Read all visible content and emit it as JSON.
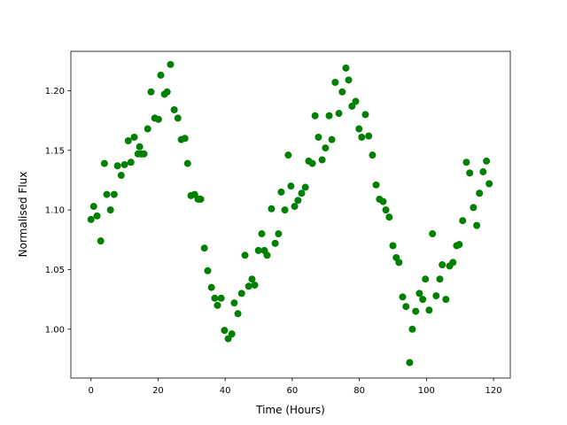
{
  "chart_data": {
    "type": "scatter",
    "xlabel": "Time (Hours)",
    "ylabel": "Normalised Flux",
    "color": "#008000",
    "xlim": [
      -6,
      125
    ],
    "ylim": [
      0.959,
      1.233
    ],
    "xticks": [
      0,
      20,
      40,
      60,
      80,
      100,
      120
    ],
    "yticks": [
      {
        "value": 1.0,
        "label": "1.00"
      },
      {
        "value": 1.05,
        "label": "1.05"
      },
      {
        "value": 1.1,
        "label": "1.10"
      },
      {
        "value": 1.15,
        "label": "1.15"
      },
      {
        "value": 1.2,
        "label": "1.20"
      }
    ],
    "x": [
      0.0,
      0.8,
      1.8,
      2.9,
      4.0,
      4.7,
      5.8,
      6.9,
      7.9,
      9.0,
      10.0,
      11.1,
      11.9,
      12.9,
      14.0,
      14.5,
      15.0,
      15.8,
      16.9,
      17.9,
      19.0,
      20.1,
      20.8,
      21.9,
      22.7,
      23.7,
      24.8,
      25.9,
      26.9,
      28.0,
      28.8,
      29.8,
      30.9,
      31.9,
      32.7,
      33.8,
      34.8,
      35.9,
      36.9,
      37.7,
      38.8,
      39.8,
      40.9,
      42.0,
      42.7,
      43.8,
      44.9,
      45.9,
      47.0,
      48.0,
      48.8,
      49.9,
      50.9,
      51.7,
      52.5,
      53.8,
      54.9,
      55.9,
      56.7,
      57.8,
      58.8,
      59.6,
      60.7,
      61.7,
      62.8,
      63.9,
      64.9,
      66.0,
      66.8,
      67.8,
      68.9,
      69.9,
      71.0,
      71.8,
      72.8,
      73.9,
      74.9,
      76.0,
      76.8,
      77.8,
      78.9,
      79.9,
      80.7,
      81.8,
      82.8,
      83.9,
      85.0,
      86.0,
      87.1,
      87.9,
      88.9,
      90.0,
      91.0,
      91.8,
      92.9,
      93.9,
      95.0,
      95.8,
      96.8,
      97.9,
      98.9,
      99.7,
      100.8,
      101.8,
      102.9,
      104.0,
      104.7,
      105.8,
      106.9,
      107.9,
      109.0,
      109.8,
      110.8,
      111.9,
      112.9,
      114.0,
      115.0,
      115.8,
      116.9,
      117.9,
      118.7
    ],
    "values": [
      1.092,
      1.103,
      1.095,
      1.074,
      1.139,
      1.113,
      1.1,
      1.113,
      1.137,
      1.129,
      1.138,
      1.158,
      1.14,
      1.161,
      1.147,
      1.153,
      1.147,
      1.147,
      1.168,
      1.199,
      1.177,
      1.176,
      1.213,
      1.197,
      1.199,
      1.222,
      1.184,
      1.177,
      1.159,
      1.16,
      1.139,
      1.112,
      1.113,
      1.109,
      1.109,
      1.068,
      1.049,
      1.035,
      1.026,
      1.02,
      1.026,
      0.999,
      0.992,
      0.996,
      1.022,
      1.013,
      1.03,
      1.062,
      1.036,
      1.042,
      1.037,
      1.066,
      1.08,
      1.066,
      1.062,
      1.101,
      1.072,
      1.08,
      1.115,
      1.1,
      1.146,
      1.12,
      1.103,
      1.108,
      1.114,
      1.119,
      1.141,
      1.139,
      1.179,
      1.161,
      1.142,
      1.152,
      1.179,
      1.159,
      1.207,
      1.181,
      1.199,
      1.219,
      1.209,
      1.187,
      1.191,
      1.168,
      1.161,
      1.18,
      1.162,
      1.146,
      1.121,
      1.109,
      1.107,
      1.1,
      1.094,
      1.07,
      1.06,
      1.056,
      1.027,
      1.019,
      0.972,
      1.0,
      1.015,
      1.03,
      1.025,
      1.042,
      1.016,
      1.08,
      1.028,
      1.042,
      1.054,
      1.025,
      1.053,
      1.056,
      1.07,
      1.071,
      1.091,
      1.14,
      1.131,
      1.102,
      1.087,
      1.114,
      1.132,
      1.141,
      1.122
    ]
  }
}
